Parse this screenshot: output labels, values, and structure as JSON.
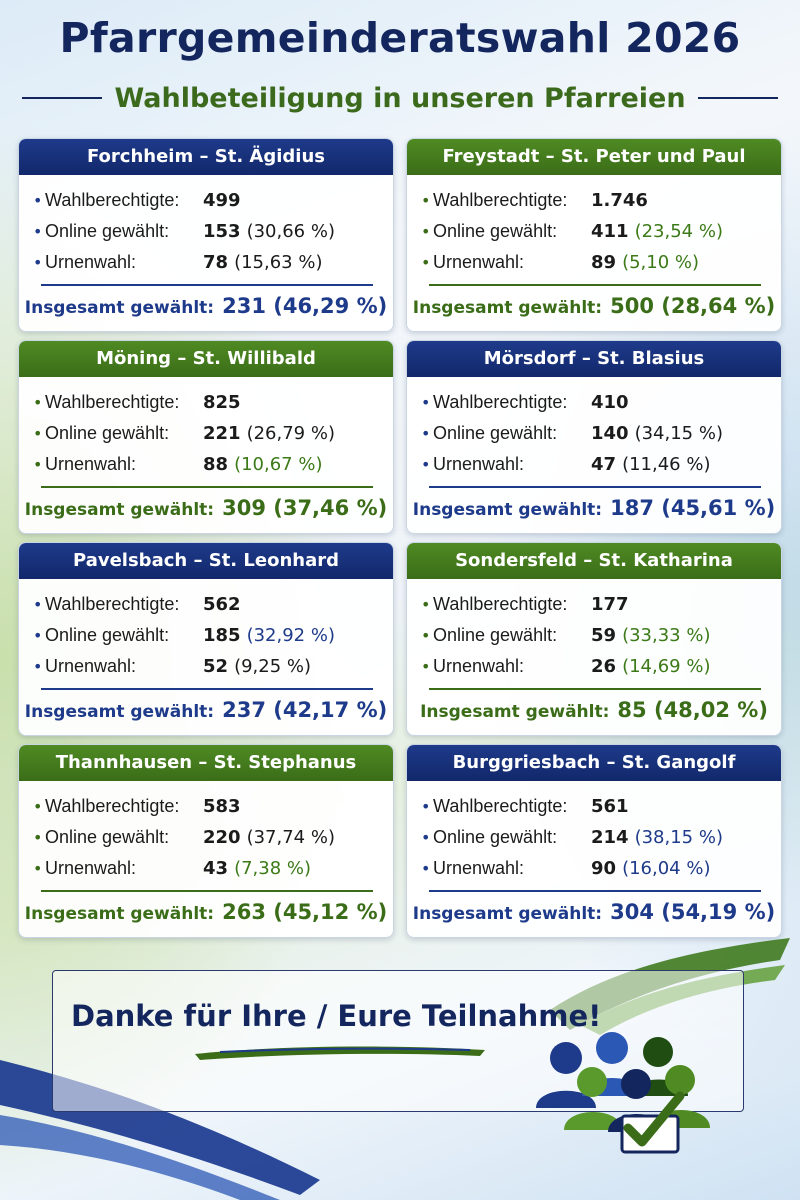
{
  "title": "Pfarrgemeinderatswahl 2026",
  "subtitle": "Wahlbeteiligung in unseren Pfarreien",
  "labels": {
    "eligible": "Wahlberechtigte:",
    "online": "Online gewählt:",
    "urn": "Urnenwahl:",
    "total": "Insgesamt gewählt:"
  },
  "parishes": [
    {
      "name": "Forchheim – St. Ägidius",
      "theme": "blue",
      "eligible": "499",
      "online": "153",
      "online_pct": "(30,66 %)",
      "online_pct_color": "#1b1b1b",
      "urn": "78",
      "urn_pct": "(15,63 %)",
      "urn_pct_color": "#1b1b1b",
      "total": "231 (46,29 %)"
    },
    {
      "name": "Freystadt – St. Peter und Paul",
      "theme": "green",
      "eligible": "1.746",
      "online": "411",
      "online_pct": "(23,54 %)",
      "online_pct_color": "#3c7a18",
      "urn": "89",
      "urn_pct": "(5,10 %)",
      "urn_pct_color": "#3c7a18",
      "total": "500 (28,64 %)"
    },
    {
      "name": "Möning – St. Willibald",
      "theme": "green",
      "eligible": "825",
      "online": "221",
      "online_pct": "(26,79 %)",
      "online_pct_color": "#1b1b1b",
      "urn": "88",
      "urn_pct": "(10,67 %)",
      "urn_pct_color": "#3c7a18",
      "total": "309 (37,46 %)"
    },
    {
      "name": "Mörsdorf – St. Blasius",
      "theme": "blue",
      "eligible": "410",
      "online": "140",
      "online_pct": "(34,15 %)",
      "online_pct_color": "#1b1b1b",
      "urn": "47",
      "urn_pct": "(11,46 %)",
      "urn_pct_color": "#1b1b1b",
      "total": "187 (45,61 %)"
    },
    {
      "name": "Pavelsbach – St. Leonhard",
      "theme": "blue",
      "eligible": "562",
      "online": "185",
      "online_pct": "(32,92 %)",
      "online_pct_color": "#1e3a8a",
      "urn": "52",
      "urn_pct": "(9,25 %)",
      "urn_pct_color": "#1b1b1b",
      "total": "237 (42,17 %)"
    },
    {
      "name": "Sondersfeld – St. Katharina",
      "theme": "green",
      "eligible": "177",
      "online": "59",
      "online_pct": "(33,33 %)",
      "online_pct_color": "#3c7a18",
      "urn": "26",
      "urn_pct": "(14,69 %)",
      "urn_pct_color": "#3c7a18",
      "total": "85 (48,02 %)"
    },
    {
      "name": "Thannhausen – St. Stephanus",
      "theme": "green",
      "eligible": "583",
      "online": "220",
      "online_pct": "(37,74 %)",
      "online_pct_color": "#1b1b1b",
      "urn": "43",
      "urn_pct": "(7,38 %)",
      "urn_pct_color": "#3c7a18",
      "total": "263 (45,12 %)"
    },
    {
      "name": "Burggriesbach – St. Gangolf",
      "theme": "blue",
      "eligible": "561",
      "online": "214",
      "online_pct": "(38,15 %)",
      "online_pct_color": "#1e3a8a",
      "urn": "90",
      "urn_pct": "(16,04 %)",
      "urn_pct_color": "#1e3a8a",
      "total": "304 (54,19 %)"
    }
  ],
  "thanks": "Danke für Ihre / Eure Teilnahme!",
  "colors": {
    "navy": "#14265e",
    "blue": "#1e3a8a",
    "green": "#3b6d18"
  },
  "icons": {
    "people": "people-group-icon",
    "check": "checkmark-icon"
  }
}
